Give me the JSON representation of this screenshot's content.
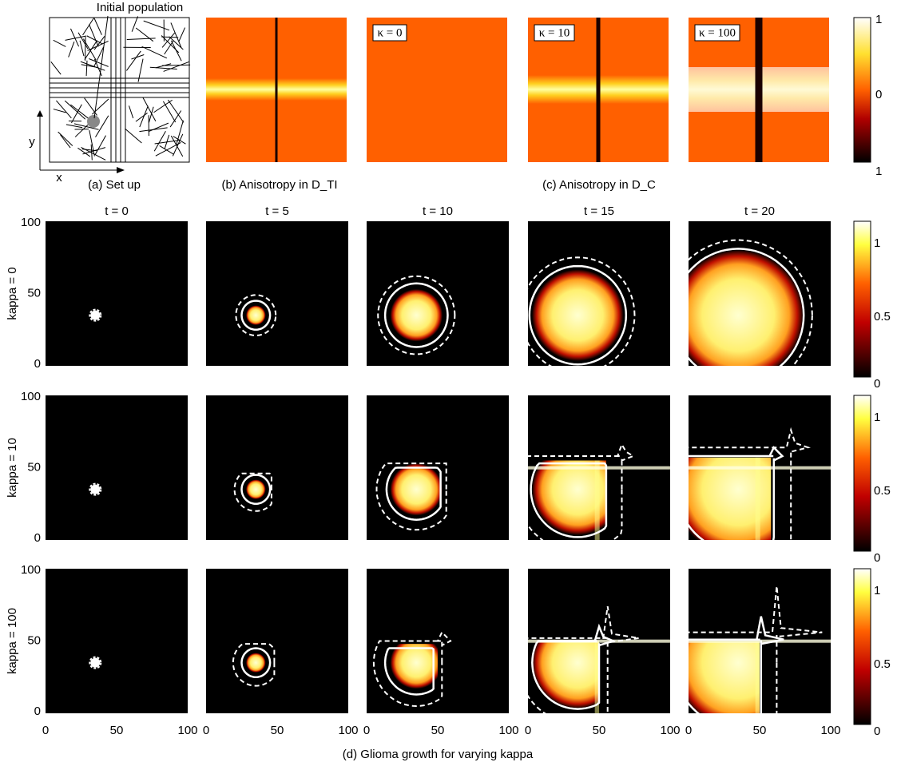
{
  "panel_a": {
    "annotation": "Initial population",
    "axis_y": "y",
    "axis_x": "x",
    "caption": "(a) Set up"
  },
  "panel_b": {
    "caption": "(b) Anisotropy in D_TI"
  },
  "panel_c": {
    "labels": [
      "κ = 0",
      "κ = 10",
      "κ = 100"
    ],
    "caption": "(c) Anisotropy in D_C"
  },
  "colorbar_top": {
    "ticks": [
      "1",
      "0",
      "1"
    ]
  },
  "panel_d": {
    "columns": [
      "t = 0",
      "t = 5",
      "t = 10",
      "t = 15",
      "t = 20"
    ],
    "rows": [
      "kappa = 0",
      "kappa = 10",
      "kappa = 100"
    ],
    "y_ticks": [
      "100",
      "50",
      "0"
    ],
    "x_ticks": [
      "0",
      "50",
      "100"
    ],
    "colorbar_ticks": [
      "1",
      "0.5",
      "0"
    ],
    "caption": "(d) Glioma growth for varying kappa"
  }
}
